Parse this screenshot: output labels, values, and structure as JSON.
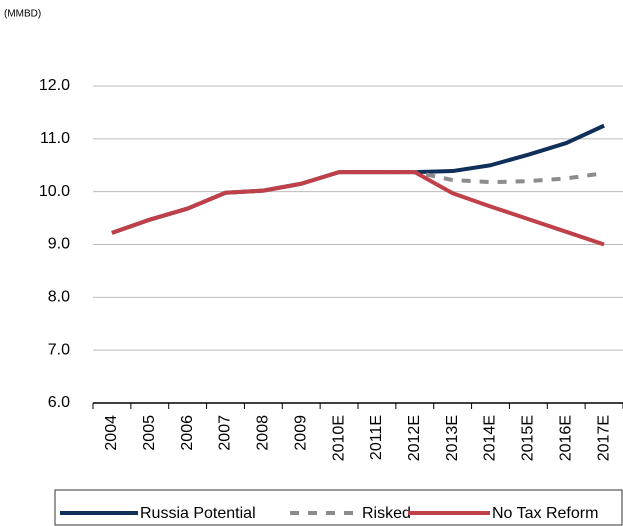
{
  "chart_data": {
    "type": "line",
    "unit_label": "(MMBD)",
    "categories": [
      "2004",
      "2005",
      "2006",
      "2007",
      "2008",
      "2009",
      "2010E",
      "2011E",
      "2012E",
      "2013E",
      "2014E",
      "2015E",
      "2016E",
      "2017E"
    ],
    "series": [
      {
        "name": "Russia Potential",
        "color": "#10305a",
        "dash": false,
        "values": [
          9.22,
          9.47,
          9.68,
          9.98,
          10.02,
          10.15,
          10.37,
          10.37,
          10.37,
          10.39,
          10.5,
          10.7,
          10.92,
          11.25
        ]
      },
      {
        "name": "Risked",
        "color": "#8c8c8c",
        "dash": true,
        "values": [
          9.22,
          9.47,
          9.68,
          9.98,
          10.02,
          10.15,
          10.37,
          10.37,
          10.37,
          10.22,
          10.18,
          10.2,
          10.25,
          10.35
        ]
      },
      {
        "name": "No Tax Reform",
        "color": "#c0404a",
        "dash": false,
        "values": [
          9.22,
          9.47,
          9.68,
          9.98,
          10.02,
          10.15,
          10.37,
          10.37,
          10.37,
          9.97,
          9.72,
          9.48,
          9.24,
          9.0
        ]
      }
    ],
    "ylim": [
      6,
      12
    ],
    "yticks": [
      {
        "value": 6,
        "label": "6.0"
      },
      {
        "value": 7,
        "label": "7.0"
      },
      {
        "value": 8,
        "label": "8.0"
      },
      {
        "value": 9,
        "label": "9.0"
      },
      {
        "value": 10,
        "label": "10.0"
      },
      {
        "value": 11,
        "label": "11.0"
      },
      {
        "value": 12,
        "label": "12.0"
      }
    ],
    "grid": true,
    "legend": "bottom"
  }
}
